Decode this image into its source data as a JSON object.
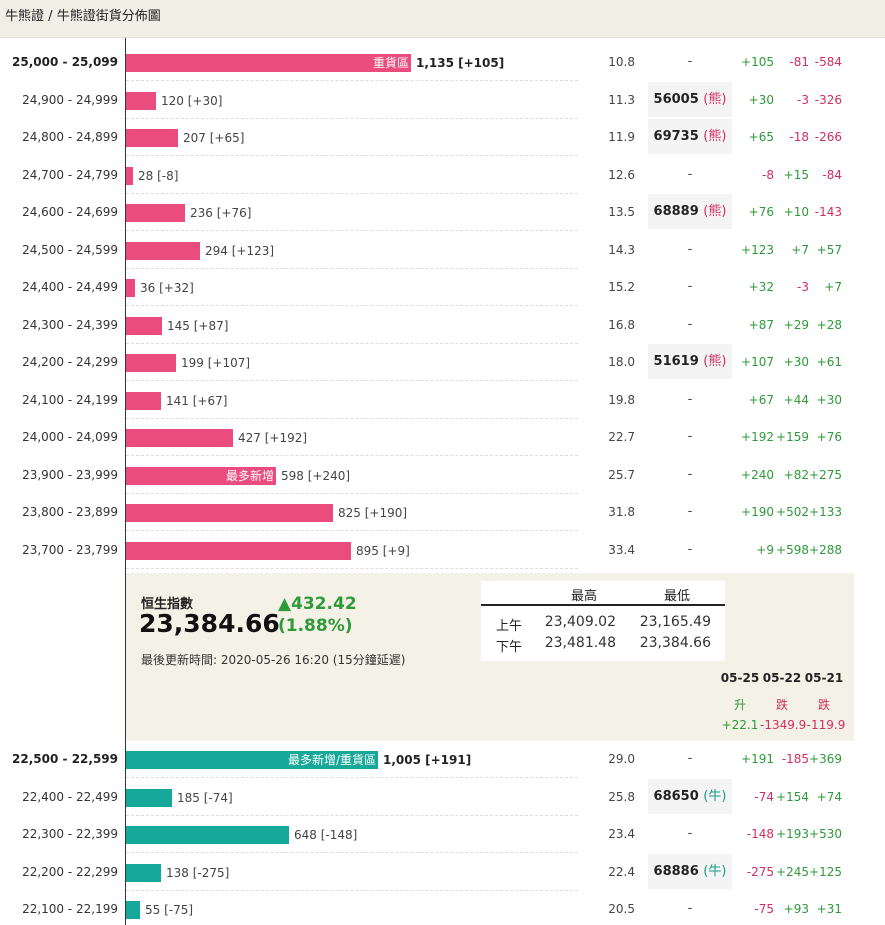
{
  "breadcrumb": {
    "root": "牛熊證",
    "sep": "/",
    "current": "牛熊證街貨分佈圖"
  },
  "colors": {
    "bear_bar": "#ea4d7d",
    "bull_bar": "#16a99a",
    "up": "#2e9a3a",
    "down": "#d12e5f",
    "info_bg": "#f4f1e6"
  },
  "bear_rows": [
    {
      "range": "25,000 - 25,099",
      "bold": true,
      "bar_value": 1135,
      "label": "1,135 [+105]",
      "tag": "重貨區",
      "ratio": "10.8",
      "code": "-",
      "kind": "",
      "ch1": "+105",
      "ch2": "-81",
      "ch3": "-584"
    },
    {
      "range": "24,900 - 24,999",
      "bold": false,
      "bar_value": 120,
      "label": "120 [+30]",
      "tag": "",
      "ratio": "11.3",
      "code": "56005",
      "kind": "(熊)",
      "ch1": "+30",
      "ch2": "-3",
      "ch3": "-326"
    },
    {
      "range": "24,800 - 24,899",
      "bold": false,
      "bar_value": 207,
      "label": "207 [+65]",
      "tag": "",
      "ratio": "11.9",
      "code": "69735",
      "kind": "(熊)",
      "ch1": "+65",
      "ch2": "-18",
      "ch3": "-266"
    },
    {
      "range": "24,700 - 24,799",
      "bold": false,
      "bar_value": 28,
      "label": "28 [-8]",
      "tag": "",
      "ratio": "12.6",
      "code": "-",
      "kind": "",
      "ch1": "-8",
      "ch2": "+15",
      "ch3": "-84"
    },
    {
      "range": "24,600 - 24,699",
      "bold": false,
      "bar_value": 236,
      "label": "236 [+76]",
      "tag": "",
      "ratio": "13.5",
      "code": "68889",
      "kind": "(熊)",
      "ch1": "+76",
      "ch2": "+10",
      "ch3": "-143"
    },
    {
      "range": "24,500 - 24,599",
      "bold": false,
      "bar_value": 294,
      "label": "294 [+123]",
      "tag": "",
      "ratio": "14.3",
      "code": "-",
      "kind": "",
      "ch1": "+123",
      "ch2": "+7",
      "ch3": "+57"
    },
    {
      "range": "24,400 - 24,499",
      "bold": false,
      "bar_value": 36,
      "label": "36 [+32]",
      "tag": "",
      "ratio": "15.2",
      "code": "-",
      "kind": "",
      "ch1": "+32",
      "ch2": "-3",
      "ch3": "+7"
    },
    {
      "range": "24,300 - 24,399",
      "bold": false,
      "bar_value": 145,
      "label": "145 [+87]",
      "tag": "",
      "ratio": "16.8",
      "code": "-",
      "kind": "",
      "ch1": "+87",
      "ch2": "+29",
      "ch3": "+28"
    },
    {
      "range": "24,200 - 24,299",
      "bold": false,
      "bar_value": 199,
      "label": "199 [+107]",
      "tag": "",
      "ratio": "18.0",
      "code": "51619",
      "kind": "(熊)",
      "ch1": "+107",
      "ch2": "+30",
      "ch3": "+61"
    },
    {
      "range": "24,100 - 24,199",
      "bold": false,
      "bar_value": 141,
      "label": "141 [+67]",
      "tag": "",
      "ratio": "19.8",
      "code": "-",
      "kind": "",
      "ch1": "+67",
      "ch2": "+44",
      "ch3": "+30"
    },
    {
      "range": "24,000 - 24,099",
      "bold": false,
      "bar_value": 427,
      "label": "427 [+192]",
      "tag": "",
      "ratio": "22.7",
      "code": "-",
      "kind": "",
      "ch1": "+192",
      "ch2": "+159",
      "ch3": "+76"
    },
    {
      "range": "23,900 - 23,999",
      "bold": false,
      "bar_value": 598,
      "label": "598 [+240]",
      "tag": "最多新增",
      "ratio": "25.7",
      "code": "-",
      "kind": "",
      "ch1": "+240",
      "ch2": "+82",
      "ch3": "+275"
    },
    {
      "range": "23,800 - 23,899",
      "bold": false,
      "bar_value": 825,
      "label": "825 [+190]",
      "tag": "",
      "ratio": "31.8",
      "code": "-",
      "kind": "",
      "ch1": "+190",
      "ch2": "+502",
      "ch3": "+133"
    },
    {
      "range": "23,700 - 23,799",
      "bold": false,
      "bar_value": 895,
      "label": "895 [+9]",
      "tag": "",
      "ratio": "33.4",
      "code": "-",
      "kind": "",
      "ch1": "+9",
      "ch2": "+598",
      "ch3": "+288"
    }
  ],
  "index": {
    "name": "恒生指數",
    "value": "23,384.66",
    "change": "▲432.42",
    "change_pct": "(1.88%)",
    "updated": "最後更新時間: 2020-05-26 16:20 (15分鐘延遲)",
    "high_label": "最高",
    "low_label": "最低",
    "am_label": "上午",
    "pm_label": "下午",
    "am_high": "23,409.02",
    "am_low": "23,165.49",
    "pm_high": "23,481.48",
    "pm_low": "23,384.66"
  },
  "days": [
    {
      "date": "05-25",
      "dir": "升",
      "value": "+22.1"
    },
    {
      "date": "05-22",
      "dir": "跌",
      "value": "-1349.9"
    },
    {
      "date": "05-21",
      "dir": "跌",
      "value": "-119.9"
    }
  ],
  "bull_rows": [
    {
      "range": "22,500 - 22,599",
      "bold": true,
      "bar_value": 1005,
      "label": "1,005 [+191]",
      "tag": "最多新增/重貨區",
      "ratio": "29.0",
      "code": "-",
      "kind": "",
      "ch1": "+191",
      "ch2": "-185",
      "ch3": "+369"
    },
    {
      "range": "22,400 - 22,499",
      "bold": false,
      "bar_value": 185,
      "label": "185 [-74]",
      "tag": "",
      "ratio": "25.8",
      "code": "68650",
      "kind": "(牛)",
      "ch1": "-74",
      "ch2": "+154",
      "ch3": "+74"
    },
    {
      "range": "22,300 - 22,399",
      "bold": false,
      "bar_value": 648,
      "label": "648 [-148]",
      "tag": "",
      "ratio": "23.4",
      "code": "-",
      "kind": "",
      "ch1": "-148",
      "ch2": "+193",
      "ch3": "+530"
    },
    {
      "range": "22,200 - 22,299",
      "bold": false,
      "bar_value": 138,
      "label": "138 [-275]",
      "tag": "",
      "ratio": "22.4",
      "code": "68886",
      "kind": "(牛)",
      "ch1": "-275",
      "ch2": "+245",
      "ch3": "+125"
    },
    {
      "range": "22,100 - 22,199",
      "bold": false,
      "bar_value": 55,
      "label": "55 [-75]",
      "tag": "",
      "ratio": "20.5",
      "code": "-",
      "kind": "",
      "ch1": "-75",
      "ch2": "+93",
      "ch3": "+31"
    }
  ]
}
